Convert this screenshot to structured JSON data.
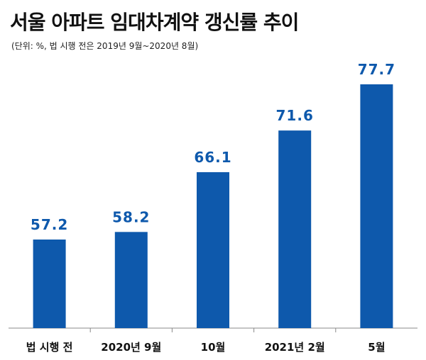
{
  "header": {
    "title": "서울 아파트 임대차계약 갱신률 추이",
    "subtitle": "(단위: %, 법 시행 전은 2019년 9월~2020년 8월)"
  },
  "colors": {
    "bar": "#0E59AC",
    "label": "#0E59AC",
    "axis": "#888888"
  },
  "chart_data": {
    "type": "bar",
    "title": "서울 아파트 임대차계약 갱신률 추이",
    "subtitle": "(단위: %, 법 시행 전은 2019년 9월~2020년 8월)",
    "categories": [
      "법 시행 전",
      "2020년 9월",
      "10월",
      "2021년 2월",
      "5월"
    ],
    "values": [
      57.2,
      58.2,
      66.1,
      71.6,
      77.7
    ],
    "data_labels": [
      "57.2",
      "58.2",
      "66.1",
      "71.6",
      "77.7"
    ],
    "xlabel": "",
    "ylabel": "",
    "grid": false,
    "legend": "none"
  }
}
